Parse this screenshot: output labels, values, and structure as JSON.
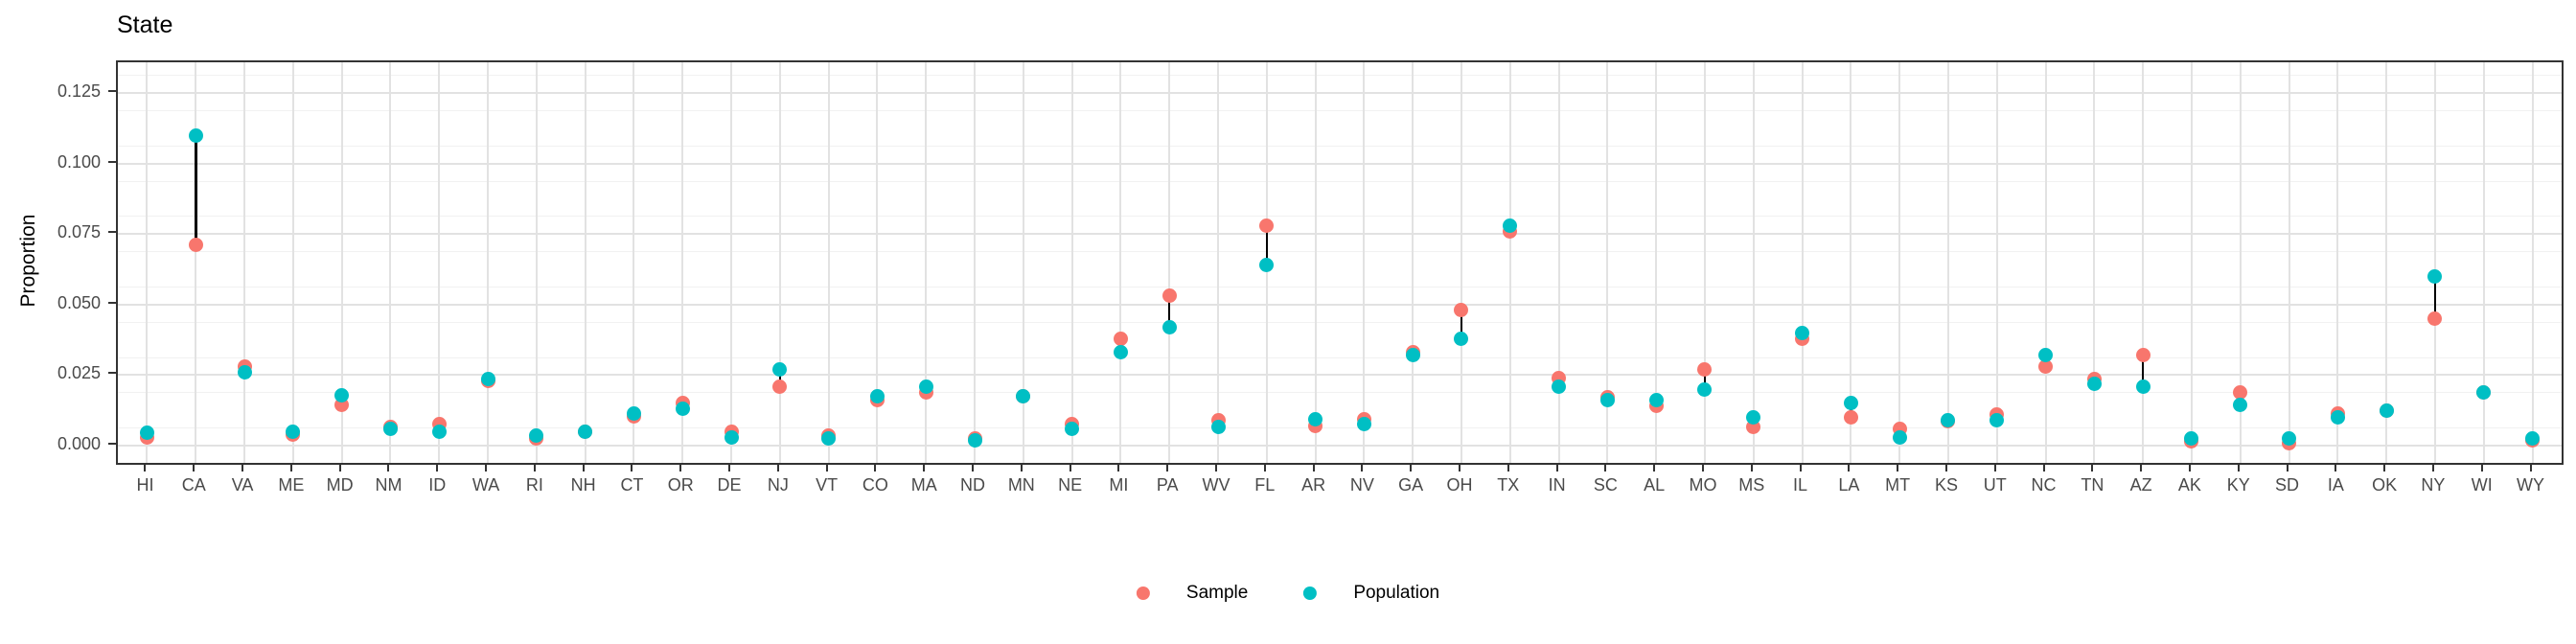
{
  "chart_data": {
    "type": "scatter",
    "variant": "dumbbell",
    "title": "State",
    "xlabel": "",
    "ylabel": "Proportion",
    "grid": "on",
    "legend_position": "bottom",
    "connector_color": "#000000",
    "categories": [
      "HI",
      "CA",
      "VA",
      "ME",
      "MD",
      "NM",
      "ID",
      "WA",
      "RI",
      "NH",
      "CT",
      "OR",
      "DE",
      "NJ",
      "VT",
      "CO",
      "MA",
      "ND",
      "MN",
      "NE",
      "MI",
      "PA",
      "WV",
      "FL",
      "AR",
      "NV",
      "GA",
      "OH",
      "TX",
      "IN",
      "SC",
      "AL",
      "MO",
      "MS",
      "IL",
      "LA",
      "MT",
      "KS",
      "UT",
      "NC",
      "TN",
      "AZ",
      "AK",
      "KY",
      "SD",
      "IA",
      "OK",
      "NY",
      "WI",
      "WY"
    ],
    "series": [
      {
        "name": "Sample",
        "color": "#F8766D",
        "values": [
          0.003,
          0.071,
          0.028,
          0.004,
          0.0145,
          0.0065,
          0.0075,
          0.023,
          0.0025,
          0.005,
          0.0105,
          0.015,
          0.005,
          0.021,
          0.0035,
          0.016,
          0.019,
          0.0025,
          0.0175,
          0.0075,
          0.038,
          0.053,
          0.009,
          0.078,
          0.007,
          0.0095,
          0.033,
          0.048,
          0.076,
          0.024,
          0.017,
          0.014,
          0.027,
          0.0065,
          0.038,
          0.01,
          0.006,
          0.0085,
          0.011,
          0.028,
          0.0235,
          0.032,
          0.0015,
          0.019,
          0.001,
          0.0115,
          0.0125,
          0.045,
          0.019,
          0.002
        ]
      },
      {
        "name": "Population",
        "color": "#00BFC4",
        "values": [
          0.0045,
          0.11,
          0.026,
          0.005,
          0.018,
          0.006,
          0.005,
          0.0235,
          0.0035,
          0.005,
          0.0115,
          0.013,
          0.003,
          0.027,
          0.0025,
          0.0175,
          0.021,
          0.002,
          0.0175,
          0.006,
          0.033,
          0.042,
          0.0065,
          0.064,
          0.0095,
          0.0075,
          0.032,
          0.038,
          0.078,
          0.021,
          0.016,
          0.016,
          0.02,
          0.01,
          0.04,
          0.015,
          0.003,
          0.009,
          0.009,
          0.032,
          0.022,
          0.021,
          0.0025,
          0.0145,
          0.0025,
          0.01,
          0.0125,
          0.06,
          0.019,
          0.0025
        ]
      }
    ],
    "yticks": [
      0.0,
      0.025,
      0.05,
      0.075,
      0.1,
      0.125
    ],
    "ytick_labels": [
      "0.000",
      "0.025",
      "0.050",
      "0.075",
      "0.100",
      "0.125"
    ],
    "ylim": [
      -0.006,
      0.136
    ]
  }
}
